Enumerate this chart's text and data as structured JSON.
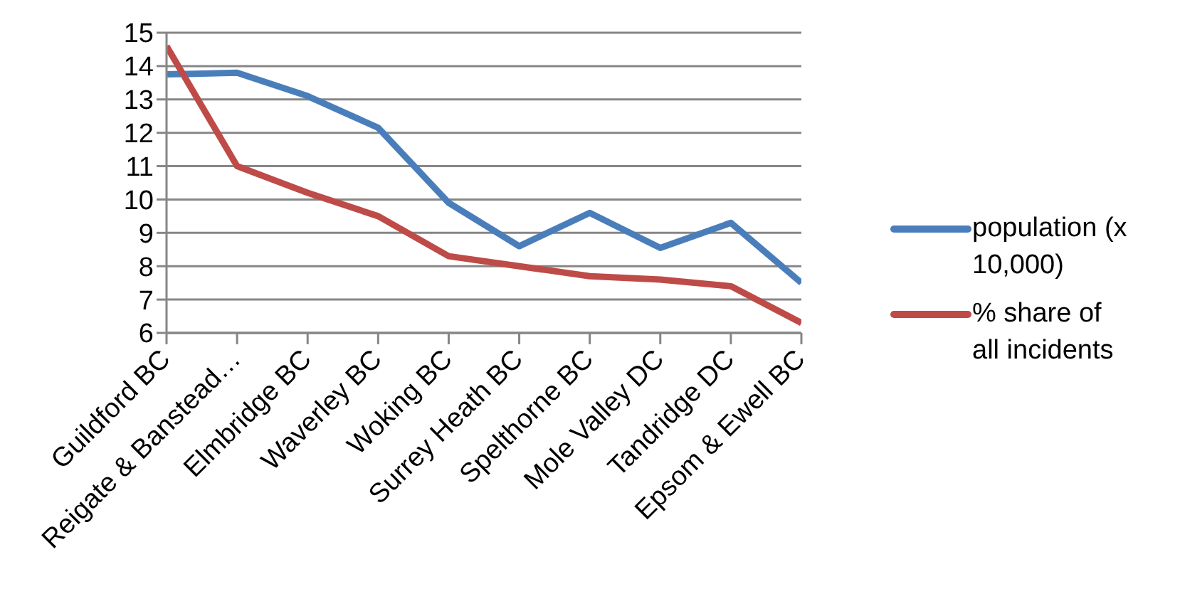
{
  "chart_data": {
    "type": "line",
    "categories": [
      "Guildford BC",
      "Reigate & Banstead…",
      "Elmbridge BC",
      "Waverley BC",
      "Woking BC",
      "Surrey Heath BC",
      "Spelthorne BC",
      "Mole Valley DC",
      "Tandridge DC",
      "Epsom & Ewell BC"
    ],
    "series": [
      {
        "name": "population (x 10,000)",
        "color": "#4a7ebb",
        "values": [
          13.75,
          13.8,
          13.1,
          12.15,
          9.9,
          8.6,
          9.6,
          8.55,
          9.3,
          7.5
        ]
      },
      {
        "name": "% share of all incidents",
        "color": "#be4b48",
        "values": [
          14.6,
          11.0,
          10.2,
          9.5,
          8.3,
          8.0,
          7.7,
          7.6,
          7.4,
          6.3
        ]
      }
    ],
    "ylim": [
      6,
      15
    ],
    "yticks": [
      6,
      7,
      8,
      9,
      10,
      11,
      12,
      13,
      14,
      15
    ],
    "grid": "y",
    "legend": "right",
    "marker": "none",
    "line_style": "solid"
  }
}
